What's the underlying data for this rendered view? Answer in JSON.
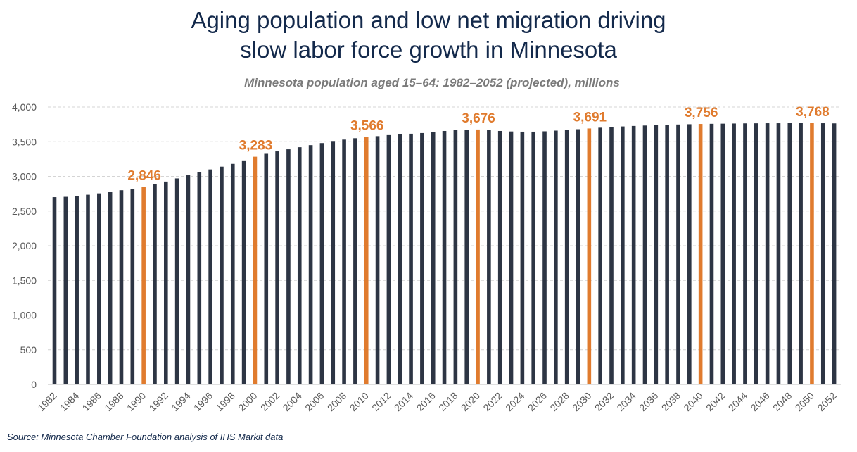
{
  "header": {
    "title_line1": "Aging population and low net migration driving",
    "title_line2": "slow labor force growth in Minnesota"
  },
  "footer": {
    "source": "Source: Minnesota Chamber Foundation analysis of IHS Markit data"
  },
  "colors": {
    "bar": "#2d3544",
    "highlight": "#e07b2e",
    "grid": "#d4d4d4",
    "title": "#13294b"
  },
  "chart_data": {
    "type": "bar",
    "title": "Minnesota population aged 15–64: 1982–2052 (projected), millions",
    "xlabel": "",
    "ylabel": "",
    "ylim": [
      0,
      4000
    ],
    "yticks": [
      0,
      500,
      1000,
      1500,
      2000,
      2500,
      3000,
      3500,
      4000
    ],
    "ytick_labels": [
      "0",
      "500",
      "1,000",
      "1,500",
      "2,000",
      "2,500",
      "3,000",
      "3,500",
      "4,000"
    ],
    "grid": true,
    "categories": [
      1982,
      1983,
      1984,
      1985,
      1986,
      1987,
      1988,
      1989,
      1990,
      1991,
      1992,
      1993,
      1994,
      1995,
      1996,
      1997,
      1998,
      1999,
      2000,
      2001,
      2002,
      2003,
      2004,
      2005,
      2006,
      2007,
      2008,
      2009,
      2010,
      2011,
      2012,
      2013,
      2014,
      2015,
      2016,
      2017,
      2018,
      2019,
      2020,
      2021,
      2022,
      2023,
      2024,
      2025,
      2026,
      2027,
      2028,
      2029,
      2030,
      2031,
      2032,
      2033,
      2034,
      2035,
      2036,
      2037,
      2038,
      2039,
      2040,
      2041,
      2042,
      2043,
      2044,
      2045,
      2046,
      2047,
      2048,
      2049,
      2050,
      2051,
      2052
    ],
    "xtick_labels": [
      "1982",
      "1984",
      "1986",
      "1988",
      "1990",
      "1992",
      "1994",
      "1996",
      "1998",
      "2000",
      "2002",
      "2004",
      "2006",
      "2008",
      "2010",
      "2012",
      "2014",
      "2016",
      "2018",
      "2020",
      "2022",
      "2024",
      "2026",
      "2028",
      "2030",
      "2032",
      "2034",
      "2036",
      "2038",
      "2040",
      "2042",
      "2044",
      "2046",
      "2048",
      "2050",
      "2052"
    ],
    "values": [
      2700,
      2705,
      2715,
      2735,
      2755,
      2775,
      2800,
      2820,
      2846,
      2885,
      2925,
      2970,
      3015,
      3060,
      3100,
      3140,
      3180,
      3230,
      3283,
      3325,
      3360,
      3390,
      3420,
      3450,
      3480,
      3510,
      3530,
      3550,
      3566,
      3580,
      3595,
      3605,
      3615,
      3625,
      3640,
      3655,
      3665,
      3672,
      3676,
      3665,
      3655,
      3648,
      3645,
      3645,
      3650,
      3660,
      3670,
      3680,
      3691,
      3702,
      3712,
      3720,
      3727,
      3733,
      3738,
      3743,
      3748,
      3752,
      3756,
      3758,
      3760,
      3762,
      3764,
      3765,
      3766,
      3766,
      3767,
      3767,
      3768,
      3766,
      3764
    ],
    "highlights": [
      {
        "category": 1990,
        "value": 2846,
        "label": "2,846"
      },
      {
        "category": 2000,
        "value": 3283,
        "label": "3,283"
      },
      {
        "category": 2010,
        "value": 3566,
        "label": "3,566"
      },
      {
        "category": 2020,
        "value": 3676,
        "label": "3,676"
      },
      {
        "category": 2030,
        "value": 3691,
        "label": "3,691"
      },
      {
        "category": 2040,
        "value": 3756,
        "label": "3,756"
      },
      {
        "category": 2050,
        "value": 3768,
        "label": "3,768"
      }
    ]
  }
}
